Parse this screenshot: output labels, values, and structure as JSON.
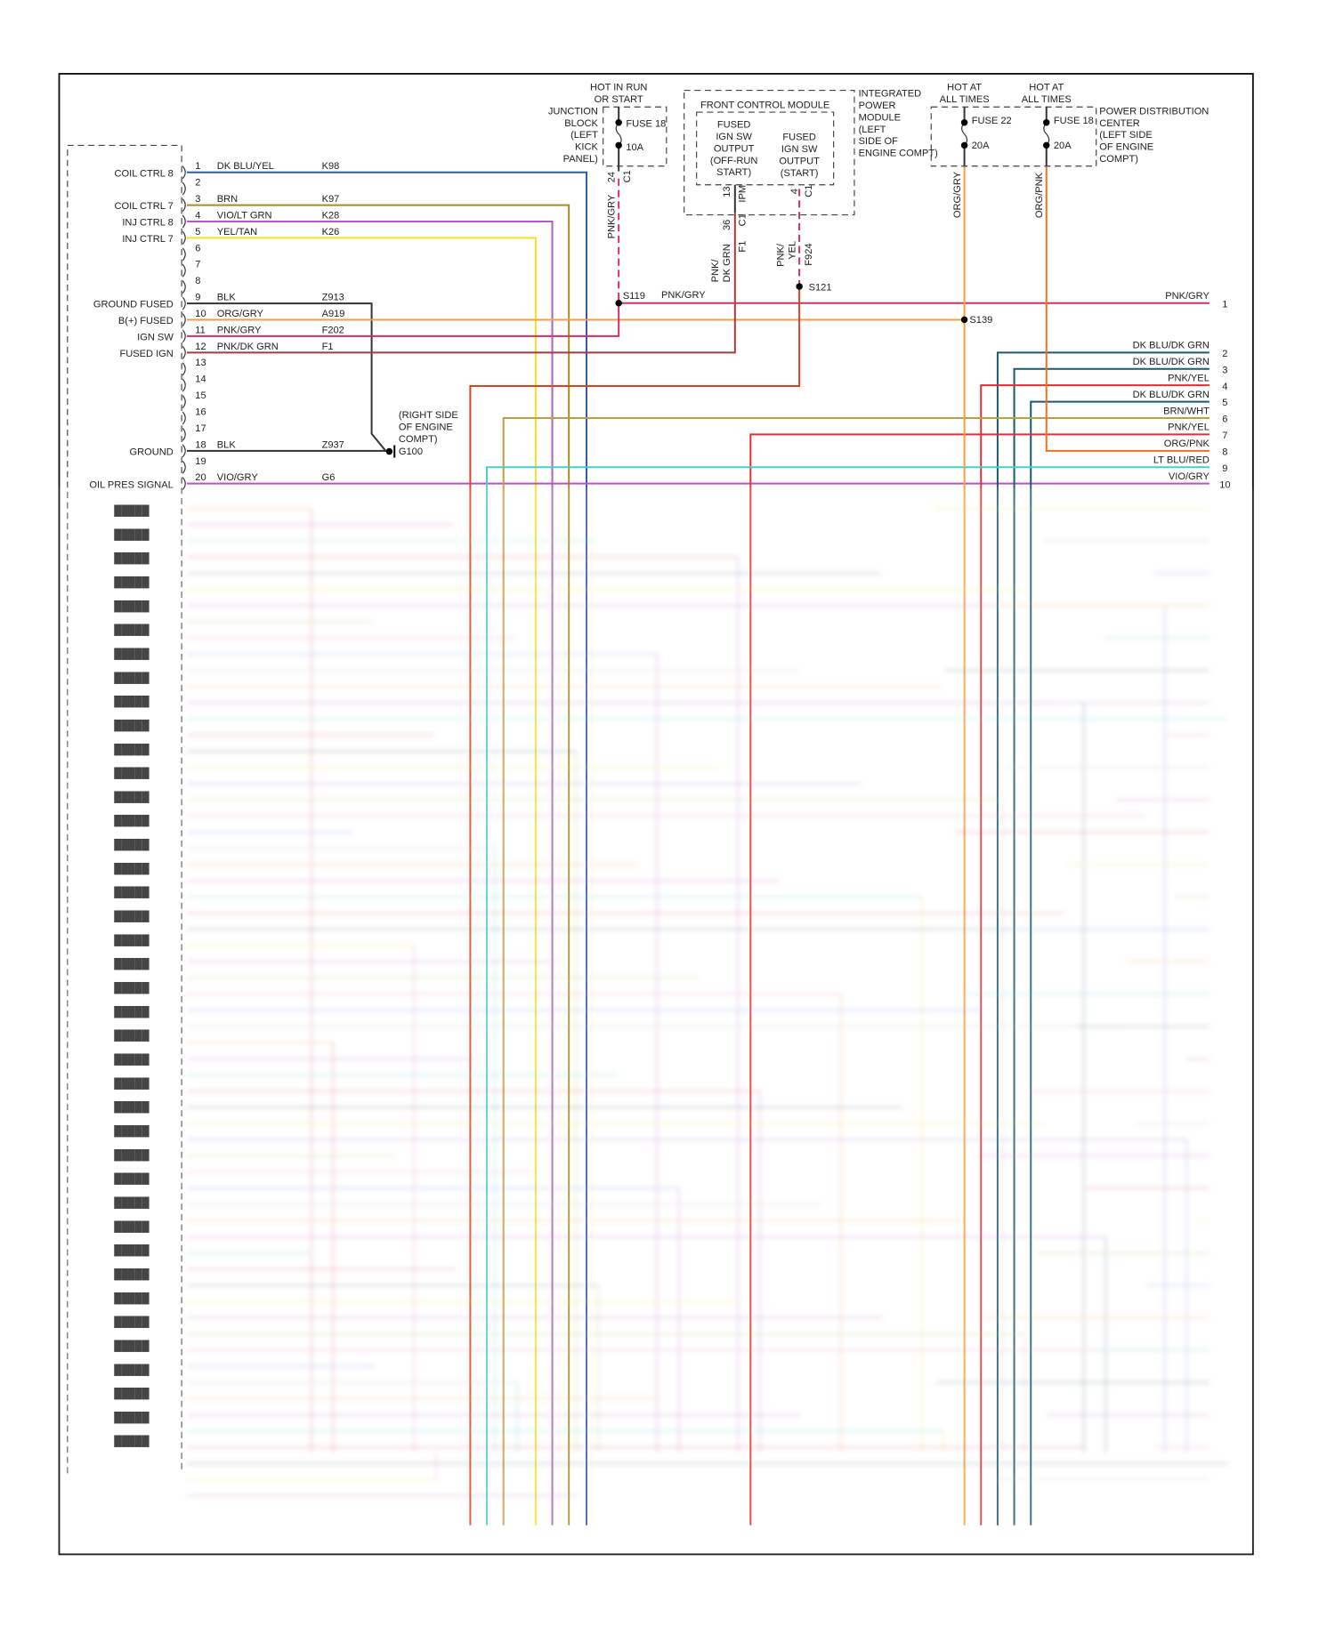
{
  "connector": {
    "pins": [
      {
        "num": "1",
        "label": "COIL CTRL 8",
        "wire": "DK BLU/YEL",
        "circuit": "K98",
        "color": "#2a5d9c"
      },
      {
        "num": "2"
      },
      {
        "num": "3",
        "label": "COIL CTRL 7",
        "wire": "BRN",
        "circuit": "K97",
        "color": "#a88c1c"
      },
      {
        "num": "4",
        "label": "INJ CTRL 8",
        "wire": "VIO/LT GRN",
        "circuit": "K28",
        "color": "#b45cc4"
      },
      {
        "num": "5",
        "label": "INJ CTRL 7",
        "wire": "YEL/TAN",
        "circuit": "K26",
        "color": "#f2e21c"
      },
      {
        "num": "6"
      },
      {
        "num": "7"
      },
      {
        "num": "8"
      },
      {
        "num": "9",
        "label": "GROUND FUSED",
        "wire": "BLK",
        "circuit": "Z913",
        "color": "#333333"
      },
      {
        "num": "10",
        "label": "B(+) FUSED",
        "wire": "ORG/GRY",
        "circuit": "A919",
        "color": "#f0a040"
      },
      {
        "num": "11",
        "label": "IGN SW",
        "wire": "PNK/GRY",
        "circuit": "F202",
        "color": "#d0306a"
      },
      {
        "num": "12",
        "label": "FUSED IGN",
        "wire": "PNK/DK GRN",
        "circuit": "F1",
        "color": "#a83a3a"
      },
      {
        "num": "13"
      },
      {
        "num": "14"
      },
      {
        "num": "15"
      },
      {
        "num": "16"
      },
      {
        "num": "17"
      },
      {
        "num": "18",
        "label": "GROUND",
        "wire": "BLK",
        "circuit": "Z937",
        "color": "#333333"
      },
      {
        "num": "19"
      },
      {
        "num": "20",
        "label": "OIL PRES SIGNAL",
        "wire": "VIO/GRY",
        "circuit": "G6",
        "color": "#c24cc4"
      }
    ]
  },
  "right_pins": [
    {
      "num": "1",
      "wire": "PNK/GRY",
      "color": "#d0306a"
    },
    {
      "num": "2",
      "wire": "DK BLU/DK GRN",
      "color": "#1a5a70"
    },
    {
      "num": "3",
      "wire": "DK BLU/DK GRN",
      "color": "#1a5a70"
    },
    {
      "num": "4",
      "wire": "PNK/YEL",
      "color": "#e03030"
    },
    {
      "num": "5",
      "wire": "DK BLU/DK GRN",
      "color": "#1a5a70"
    },
    {
      "num": "6",
      "wire": "BRN/WHT",
      "color": "#bca040"
    },
    {
      "num": "7",
      "wire": "PNK/YEL",
      "color": "#e03030"
    },
    {
      "num": "8",
      "wire": "ORG/PNK",
      "color": "#f07020"
    },
    {
      "num": "9",
      "wire": "LT BLU/RED",
      "color": "#48ccd4"
    },
    {
      "num": "10",
      "wire": "VIO/GRY",
      "color": "#c24cc4"
    }
  ],
  "junction_block": {
    "hot": [
      "HOT IN RUN",
      "OR START"
    ],
    "name": [
      "JUNCTION",
      "BLOCK",
      "(LEFT",
      "KICK",
      "PANEL)"
    ],
    "fuse": "FUSE 18",
    "amps": "10A",
    "pin": "24",
    "conn": "C1",
    "wire": "PNK/GRY"
  },
  "fcm": {
    "title": "FRONT CONTROL MODULE",
    "out1": [
      "FUSED",
      "IGN SW",
      "OUTPUT",
      "(OFF-RUN",
      "START)"
    ],
    "out2": [
      "FUSED",
      "IGN SW",
      "OUTPUT",
      "(START)"
    ],
    "ipm": [
      "INTEGRATED",
      "POWER",
      "MODULE",
      "(LEFT",
      "SIDE OF",
      "ENGINE COMPT)"
    ],
    "pin13": "13",
    "ipm_label": "IPM",
    "pin36": "36",
    "c1a": "C1",
    "pin4": "4",
    "c1b": "C1",
    "wire1": [
      "PNK/",
      "DK GRN"
    ],
    "circ1": "F1",
    "wire2": [
      "PNK/",
      "YEL"
    ],
    "circ2": "F924"
  },
  "pdc": {
    "hot1": [
      "HOT AT",
      "ALL TIMES"
    ],
    "hot2": [
      "HOT AT",
      "ALL TIMES"
    ],
    "fuse1": "FUSE 22",
    "amps1": "20A",
    "fuse2": "FUSE 18",
    "amps2": "20A",
    "name": [
      "POWER DISTRIBUTION",
      "CENTER",
      "(LEFT SIDE",
      "OF ENGINE",
      "COMPT)"
    ],
    "wire1": "ORG/GRY",
    "wire2": "ORG/PNK"
  },
  "splices": {
    "s119": "S119",
    "s121": "S121",
    "s139": "S139",
    "s119_wire": "PNK/GRY"
  },
  "ground": {
    "name": "G100",
    "location": [
      "(RIGHT SIDE",
      "OF ENGINE",
      "COMPT)"
    ]
  }
}
